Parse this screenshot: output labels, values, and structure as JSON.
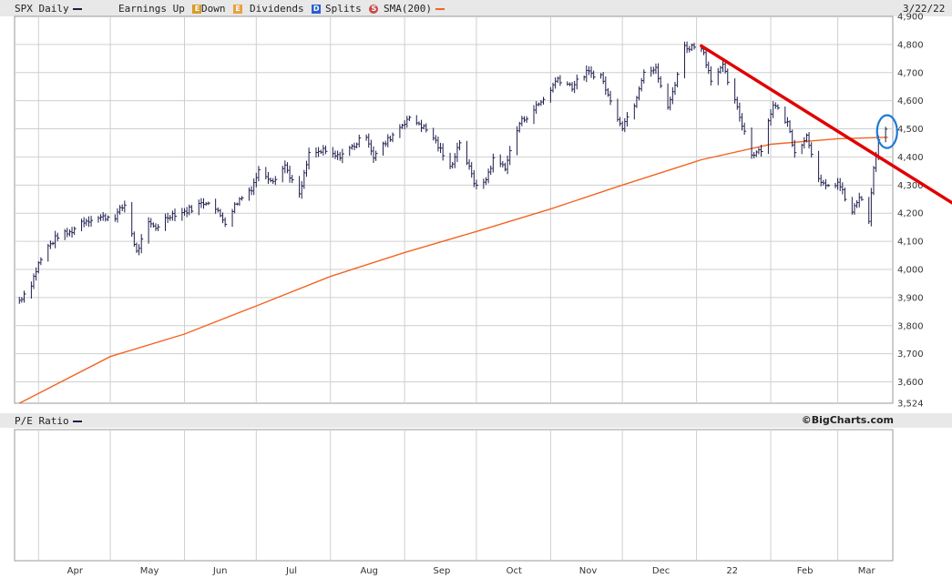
{
  "header": {
    "symbol_label": "SPX Daily",
    "earnings_label": "Earnings Up",
    "earnings_up_glyph": "E",
    "down_label": "Down",
    "earnings_down_glyph": "E",
    "dividends_label": "Dividends",
    "dividends_glyph": "D",
    "splits_label": "Splits",
    "splits_glyph": "S",
    "sma_label": "SMA(200)",
    "date": "3/22/22"
  },
  "lower_panel": {
    "label": "P/E Ratio",
    "copyright": "©BigCharts.com"
  },
  "colors": {
    "price_bars": "#1c1c4c",
    "sma": "#f26522",
    "trendline": "#e00000",
    "highlight": "#1e7ad6",
    "panel_bg": "#e8e8e8",
    "grid": "#cfcfcf"
  },
  "chart_data": {
    "type": "line",
    "x_ticks": [
      "Apr",
      "May",
      "Jun",
      "Jul",
      "Aug",
      "Sep",
      "Oct",
      "Nov",
      "Dec",
      "22",
      "Feb",
      "Mar"
    ],
    "y_ticks": [
      "3,524",
      "3,600",
      "3,700",
      "3,800",
      "3,900",
      "4,000",
      "4,100",
      "4,200",
      "4,300",
      "4,400",
      "4,500",
      "4,600",
      "4,700",
      "4,800",
      "4,900"
    ],
    "ylim": [
      3524,
      4900
    ],
    "price_series": {
      "style": "ohlc-bars",
      "points": [
        [
          "2021-03-24",
          3890
        ],
        [
          "2021-03-29",
          3950
        ],
        [
          "2021-04-01",
          4020
        ],
        [
          "2021-04-05",
          4080
        ],
        [
          "2021-04-09",
          4120
        ],
        [
          "2021-04-14",
          4130
        ],
        [
          "2021-04-19",
          4170
        ],
        [
          "2021-04-23",
          4180
        ],
        [
          "2021-04-28",
          4185
        ],
        [
          "2021-05-03",
          4190
        ],
        [
          "2021-05-07",
          4230
        ],
        [
          "2021-05-12",
          4060
        ],
        [
          "2021-05-17",
          4160
        ],
        [
          "2021-05-20",
          4150
        ],
        [
          "2021-05-26",
          4195
        ],
        [
          "2021-06-01",
          4205
        ],
        [
          "2021-06-07",
          4230
        ],
        [
          "2021-06-11",
          4245
        ],
        [
          "2021-06-18",
          4170
        ],
        [
          "2021-06-23",
          4240
        ],
        [
          "2021-06-29",
          4290
        ],
        [
          "2021-07-02",
          4350
        ],
        [
          "2021-07-08",
          4320
        ],
        [
          "2021-07-13",
          4370
        ],
        [
          "2021-07-19",
          4260
        ],
        [
          "2021-07-23",
          4410
        ],
        [
          "2021-07-29",
          4420
        ],
        [
          "2021-08-04",
          4400
        ],
        [
          "2021-08-10",
          4435
        ],
        [
          "2021-08-16",
          4480
        ],
        [
          "2021-08-19",
          4400
        ],
        [
          "2021-08-26",
          4470
        ],
        [
          "2021-09-02",
          4535
        ],
        [
          "2021-09-07",
          4520
        ],
        [
          "2021-09-13",
          4470
        ],
        [
          "2021-09-20",
          4360
        ],
        [
          "2021-09-24",
          4455
        ],
        [
          "2021-09-30",
          4310
        ],
        [
          "2021-10-04",
          4300
        ],
        [
          "2021-10-08",
          4390
        ],
        [
          "2021-10-13",
          4365
        ],
        [
          "2021-10-19",
          4520
        ],
        [
          "2021-10-25",
          4570
        ],
        [
          "2021-10-29",
          4605
        ],
        [
          "2021-11-04",
          4680
        ],
        [
          "2021-11-10",
          4650
        ],
        [
          "2021-11-16",
          4700
        ],
        [
          "2021-11-22",
          4690
        ],
        [
          "2021-11-26",
          4595
        ],
        [
          "2021-12-01",
          4510
        ],
        [
          "2021-12-06",
          4590
        ],
        [
          "2021-12-10",
          4710
        ],
        [
          "2021-12-15",
          4710
        ],
        [
          "2021-12-20",
          4570
        ],
        [
          "2021-12-27",
          4790
        ],
        [
          "2022-01-03",
          4795
        ],
        [
          "2022-01-07",
          4680
        ],
        [
          "2022-01-12",
          4720
        ],
        [
          "2022-01-18",
          4570
        ],
        [
          "2022-01-24",
          4410
        ],
        [
          "2022-01-28",
          4430
        ],
        [
          "2022-02-02",
          4590
        ],
        [
          "2022-02-08",
          4520
        ],
        [
          "2022-02-11",
          4420
        ],
        [
          "2022-02-16",
          4475
        ],
        [
          "2022-02-22",
          4305
        ],
        [
          "2022-02-24",
          4290
        ],
        [
          "2022-03-01",
          4310
        ],
        [
          "2022-03-07",
          4200
        ],
        [
          "2022-03-10",
          4260
        ],
        [
          "2022-03-14",
          4175
        ],
        [
          "2022-03-16",
          4355
        ],
        [
          "2022-03-18",
          4460
        ],
        [
          "2022-03-22",
          4510
        ]
      ]
    },
    "sma_series": {
      "name": "SMA(200)",
      "points": [
        [
          "2021-03-24",
          3524
        ],
        [
          "2021-05-01",
          3690
        ],
        [
          "2021-06-01",
          3770
        ],
        [
          "2021-07-01",
          3870
        ],
        [
          "2021-08-01",
          3975
        ],
        [
          "2021-09-01",
          4060
        ],
        [
          "2021-10-01",
          4135
        ],
        [
          "2021-11-01",
          4215
        ],
        [
          "2021-12-01",
          4300
        ],
        [
          "2022-01-03",
          4390
        ],
        [
          "2022-02-01",
          4445
        ],
        [
          "2022-03-01",
          4465
        ],
        [
          "2022-03-22",
          4470
        ]
      ]
    },
    "trendline": {
      "from": [
        "2022-01-03",
        4795
      ],
      "to": [
        "2022-04-01",
        4250
      ]
    },
    "highlight_ellipse": [
      "2022-03-22",
      4490
    ],
    "grid": true,
    "lower_panel_ylim": [
      0,
      1
    ]
  }
}
